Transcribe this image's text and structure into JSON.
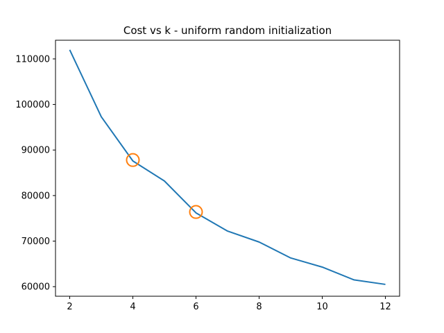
{
  "chart_data": {
    "type": "line",
    "title": "Cost vs k - uniform random initialization",
    "xlabel": "",
    "ylabel": "",
    "xlim": [
      1.55,
      12.45
    ],
    "ylim": [
      57900,
      114100
    ],
    "x_ticks": [
      2,
      4,
      6,
      8,
      10,
      12
    ],
    "y_ticks": [
      60000,
      70000,
      80000,
      90000,
      100000,
      110000
    ],
    "grid": false,
    "series": [
      {
        "color": "#1f77b4",
        "x": [
          2,
          3,
          4,
          5,
          6,
          7,
          8,
          9,
          10,
          11,
          12
        ],
        "y": [
          112000,
          97300,
          87600,
          83200,
          76200,
          72200,
          69800,
          66300,
          64300,
          61500,
          60500
        ]
      }
    ],
    "highlights": {
      "color": "#ff7f0e",
      "marker": "circle-open",
      "x": [
        4,
        6
      ],
      "y": [
        87800,
        76400
      ]
    }
  }
}
